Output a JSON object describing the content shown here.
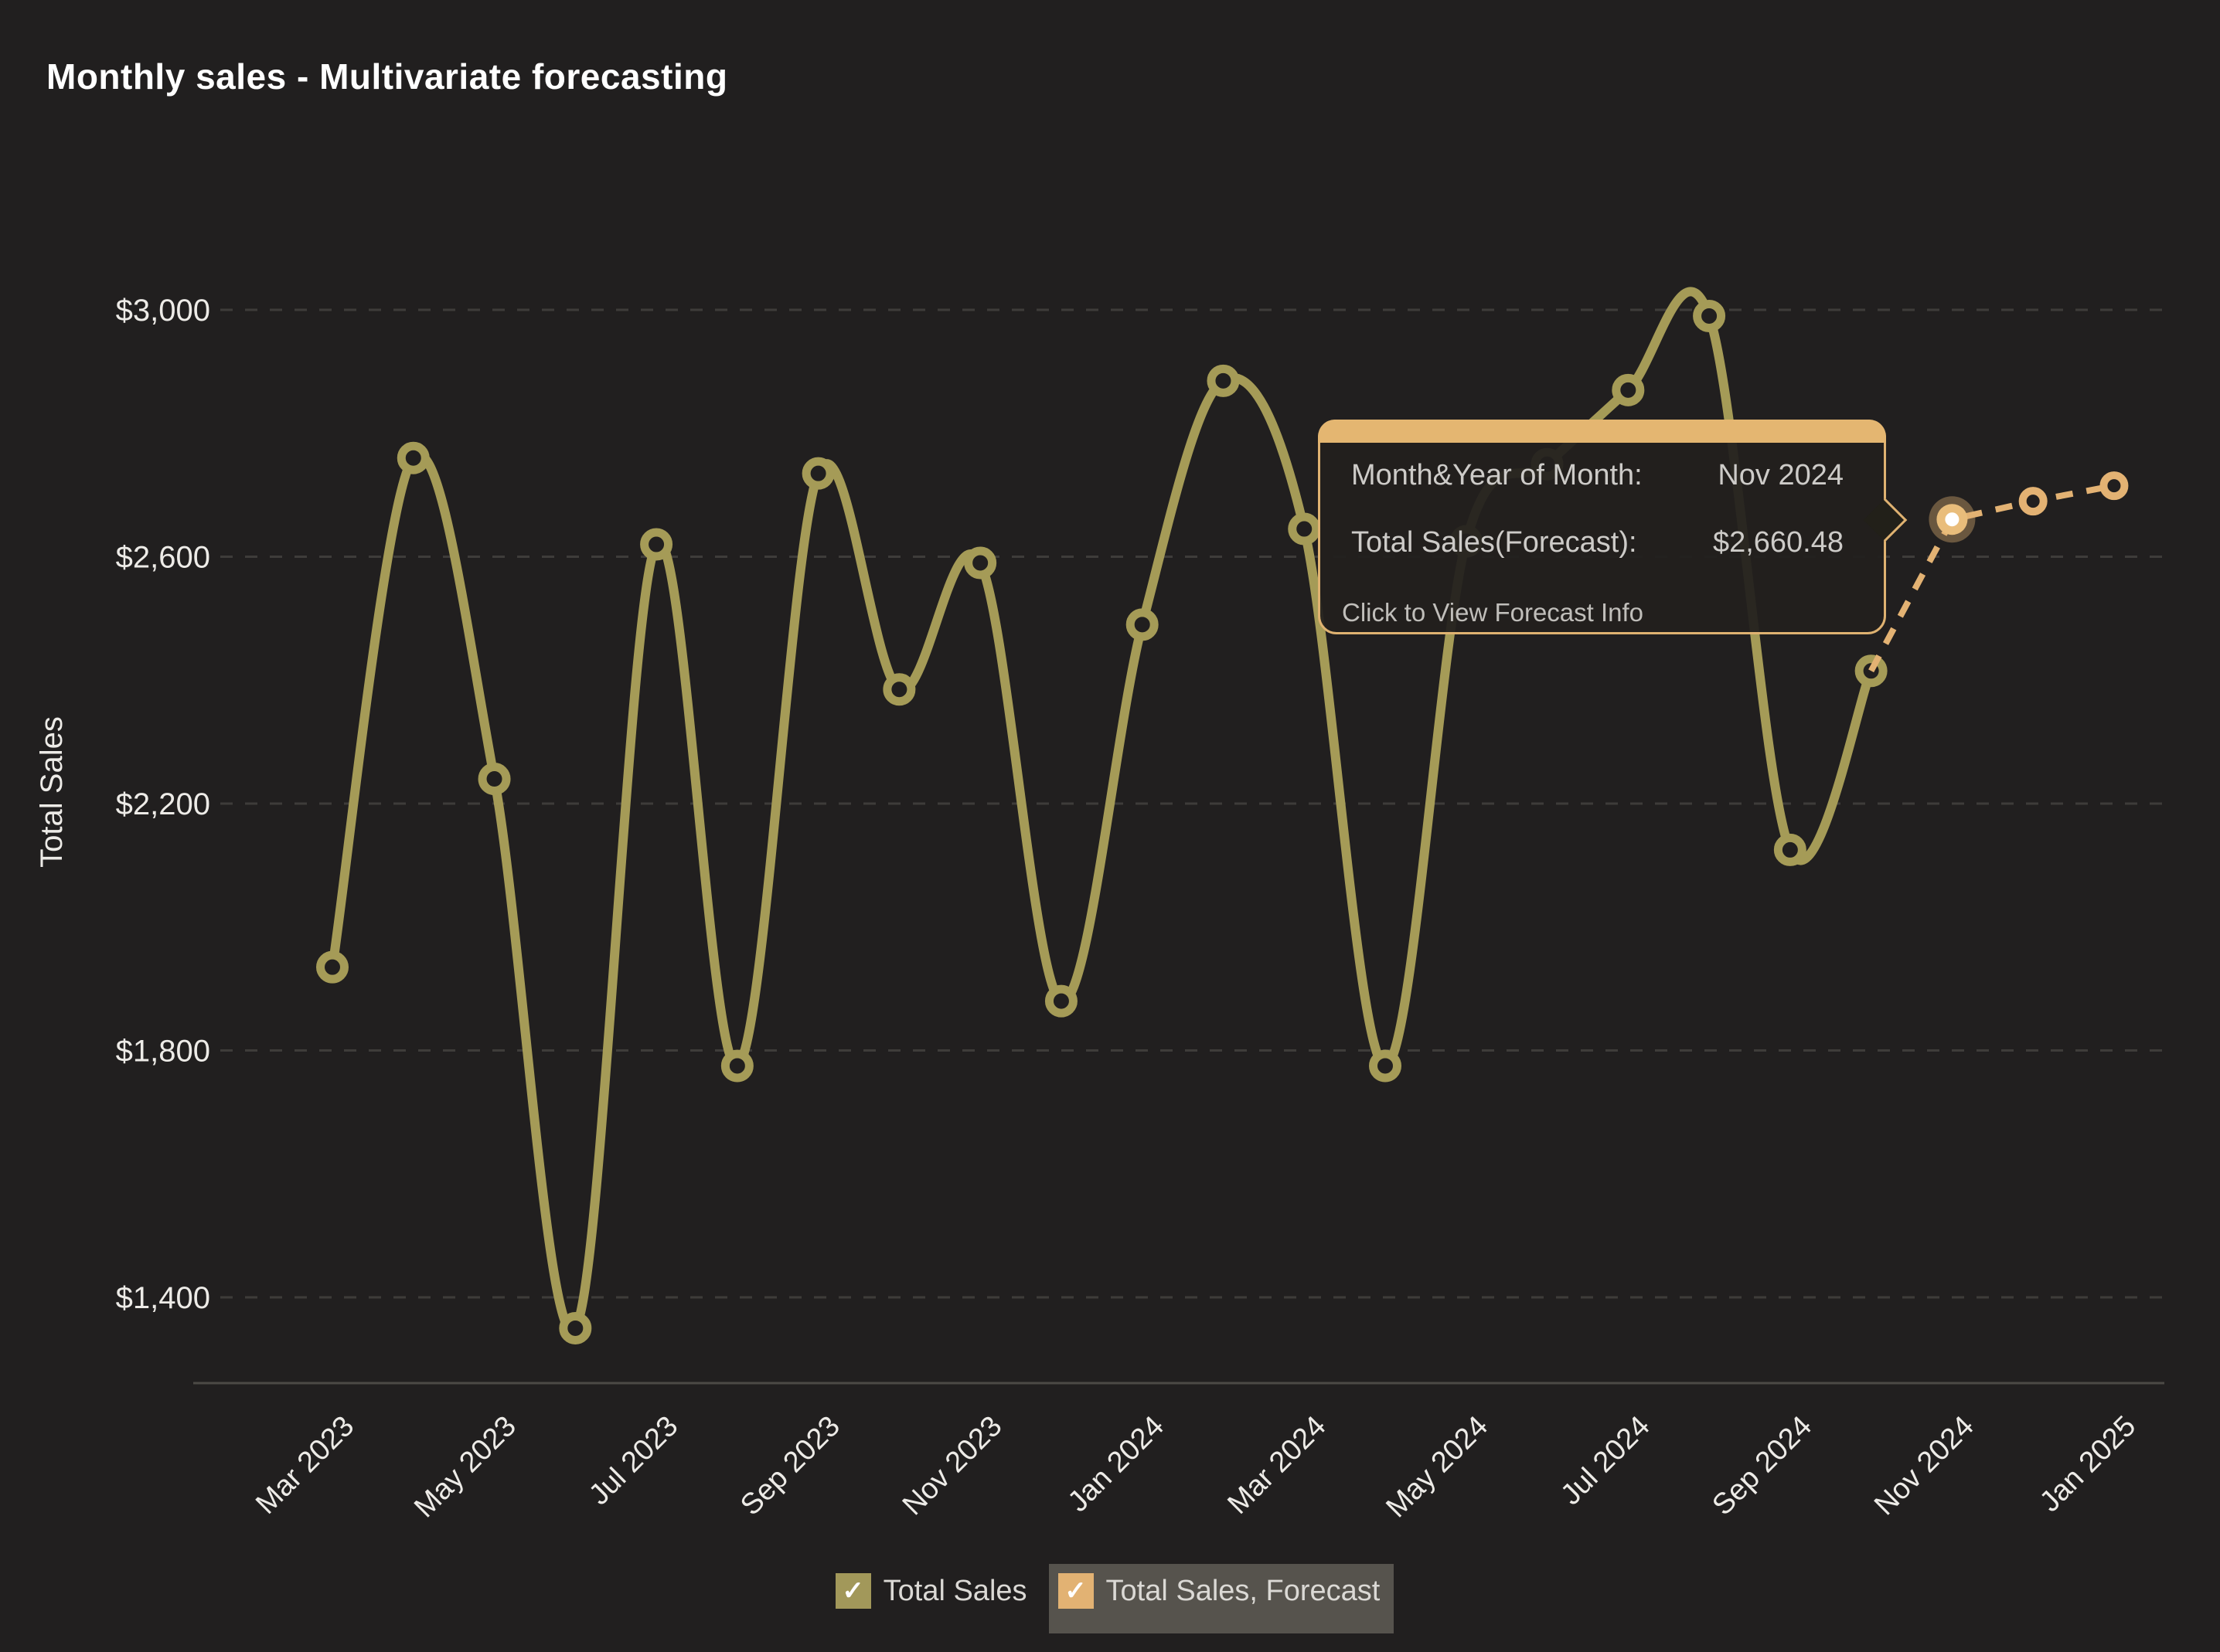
{
  "title": "Monthly sales - Multivariate forecasting",
  "colors": {
    "background": "#211f1f",
    "series_total_sales": "#a59b57",
    "series_forecast": "#e3b273",
    "gridline": "#3e3c3a",
    "axis_line": "#4c4a46",
    "tick_text": "#edebe7",
    "tooltip_border": "#dfb271",
    "tooltip_header": "#e4b671",
    "highlight_center": "#ffffff"
  },
  "chart_data": {
    "type": "line",
    "title": "Monthly sales - Multivariate forecasting",
    "xlabel": "",
    "ylabel": "Total Sales",
    "grid": "horizontal-dashed",
    "legend_position": "bottom-center",
    "ylim": [
      1260,
      3190
    ],
    "y_ticks": [
      {
        "value": 3000,
        "label": "$3,000"
      },
      {
        "value": 2600,
        "label": "$2,600"
      },
      {
        "value": 2200,
        "label": "$2,200"
      },
      {
        "value": 1800,
        "label": "$1,800"
      },
      {
        "value": 1400,
        "label": "$1,400"
      }
    ],
    "x_tick_labels": [
      "Mar 2023",
      "May 2023",
      "Jul 2023",
      "Sep 2023",
      "Nov 2023",
      "Jan 2024",
      "Mar 2024",
      "May 2024",
      "Jul 2024",
      "Sep 2024",
      "Nov 2024",
      "Jan 2025"
    ],
    "categories": [
      "Mar 2023",
      "Apr 2023",
      "May 2023",
      "Jun 2023",
      "Jul 2023",
      "Aug 2023",
      "Sep 2023",
      "Oct 2023",
      "Nov 2023",
      "Dec 2023",
      "Jan 2024",
      "Feb 2024",
      "Mar 2024",
      "Apr 2024",
      "May 2024",
      "Jun 2024",
      "Jul 2024",
      "Aug 2024",
      "Sep 2024",
      "Oct 2024",
      "Nov 2024",
      "Dec 2024",
      "Jan 2025"
    ],
    "series": [
      {
        "name": "Total Sales",
        "style": "solid",
        "color": "#a59b57",
        "values": [
          1935,
          2760,
          2240,
          1350,
          2620,
          1775,
          2735,
          2385,
          2590,
          1880,
          2490,
          2885,
          2645,
          1775,
          2625,
          2750,
          2870,
          2990,
          2125,
          2415,
          null,
          null,
          null
        ]
      },
      {
        "name": "Total Sales, Forecast",
        "style": "dashed",
        "color": "#e3b273",
        "values": [
          null,
          null,
          null,
          null,
          null,
          null,
          null,
          null,
          null,
          null,
          null,
          null,
          null,
          null,
          null,
          null,
          null,
          null,
          null,
          2415,
          2660.48,
          2690,
          2715
        ]
      }
    ],
    "highlight": {
      "category": "Nov 2024",
      "index": 20,
      "value": 2660.48
    }
  },
  "tooltip": {
    "row1_label": "Month&Year of Month:",
    "row1_value": "Nov 2024",
    "row2_label": "Total Sales(Forecast):",
    "row2_value": "$2,660.48",
    "footer": "Click to View Forecast Info"
  },
  "legend": {
    "items": [
      {
        "label": "Total Sales",
        "checked": true,
        "checkmark": "✓",
        "highlighted": false
      },
      {
        "label": "Total Sales, Forecast",
        "checked": true,
        "checkmark": "✓",
        "highlighted": true
      }
    ]
  }
}
